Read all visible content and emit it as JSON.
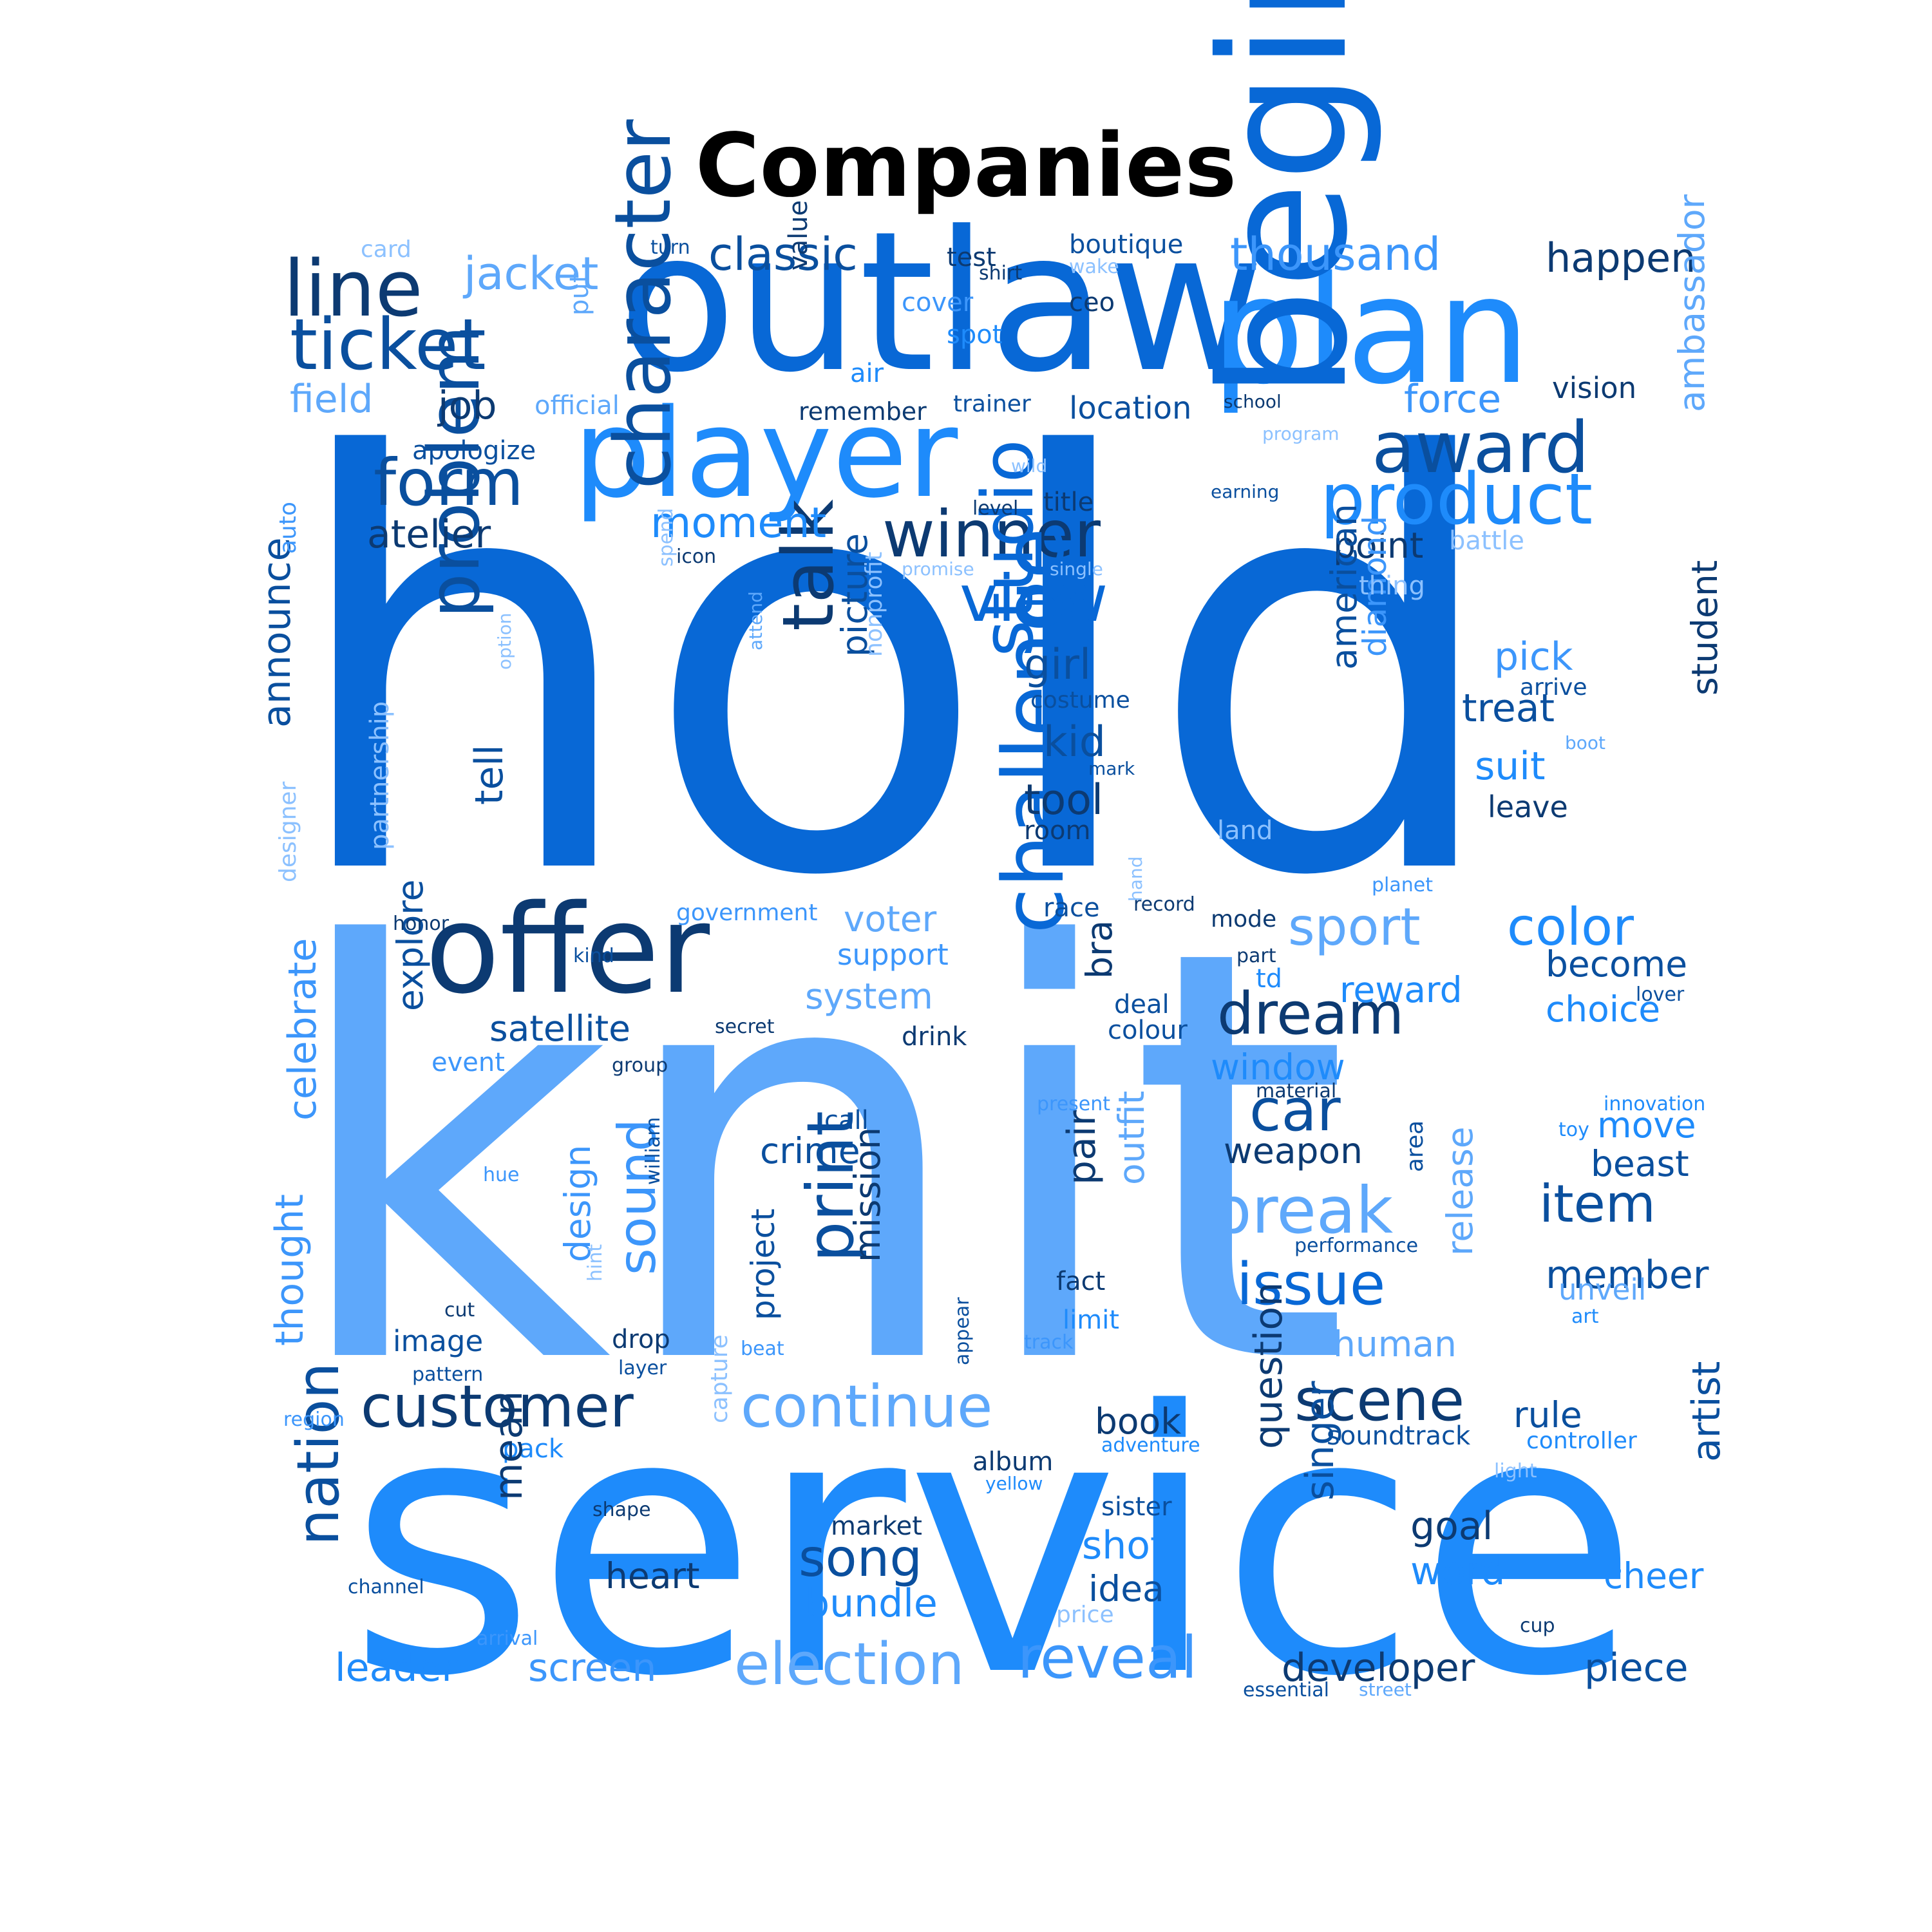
{
  "title": "Companies",
  "words": [
    "hold",
    "knit",
    "service",
    "outlaw",
    "plan",
    "player",
    "begin",
    "offer",
    "line",
    "ticket",
    "jacket",
    "classic",
    "thousand",
    "happen",
    "award",
    "product",
    "form",
    "winner",
    "view",
    "character",
    "talk",
    "studio",
    "challenge",
    "problem",
    "atelier",
    "job",
    "field",
    "official",
    "apologize",
    "moment",
    "point",
    "force",
    "vision",
    "location",
    "remember",
    "trainer",
    "school",
    "ambassador",
    "girl",
    "kid",
    "tool",
    "picture",
    "nonprofit",
    "treat",
    "suit",
    "leave",
    "pick",
    "arrive",
    "boot",
    "student",
    "american",
    "diamond",
    "sport",
    "color",
    "dream",
    "become",
    "choice",
    "voter",
    "support",
    "system",
    "satellite",
    "window",
    "car",
    "break",
    "weapon",
    "item",
    "member",
    "unveil",
    "issue",
    "customer",
    "continue",
    "scene",
    "rule",
    "book",
    "election",
    "reveal",
    "developer",
    "piece",
    "leader",
    "screen",
    "nation",
    "song",
    "bundle",
    "heart",
    "shot",
    "idea",
    "word",
    "cheer",
    "goal",
    "artist",
    "print",
    "mission",
    "crime",
    "sound",
    "design",
    "project",
    "pair",
    "outfit",
    "release",
    "beast",
    "move",
    "human",
    "image",
    "drop",
    "fact",
    "limit",
    "explore",
    "celebrate",
    "thought",
    "announce",
    "tell",
    "partnership",
    "designer",
    "auto",
    "value",
    "put",
    "air",
    "cover",
    "spot",
    "test",
    "shirt",
    "boutique",
    "wake",
    "ceo",
    "turn",
    "card",
    "program",
    "wild",
    "earning",
    "level",
    "title",
    "icon",
    "promise",
    "single",
    "thing",
    "battle",
    "spend",
    "attend",
    "option",
    "costume",
    "mark",
    "room",
    "land",
    "planet",
    "record",
    "race",
    "mode",
    "hand",
    "government",
    "honor",
    "kind",
    "part",
    "lover",
    "deal",
    "colour",
    "td",
    "reward",
    "drink",
    "secret",
    "event",
    "group",
    "material",
    "present",
    "innovation",
    "toy",
    "area",
    "call",
    "hue",
    "william",
    "hint",
    "cut",
    "pattern",
    "layer",
    "beat",
    "appear",
    "track",
    "performance",
    "art",
    "region",
    "pack",
    "capture",
    "adventure",
    "controller",
    "soundtrack",
    "light",
    "album",
    "yellow",
    "sister",
    "market",
    "shape",
    "channel",
    "arrival",
    "price",
    "cup",
    "essential",
    "street",
    "question",
    "singer",
    "mean",
    "bra"
  ]
}
